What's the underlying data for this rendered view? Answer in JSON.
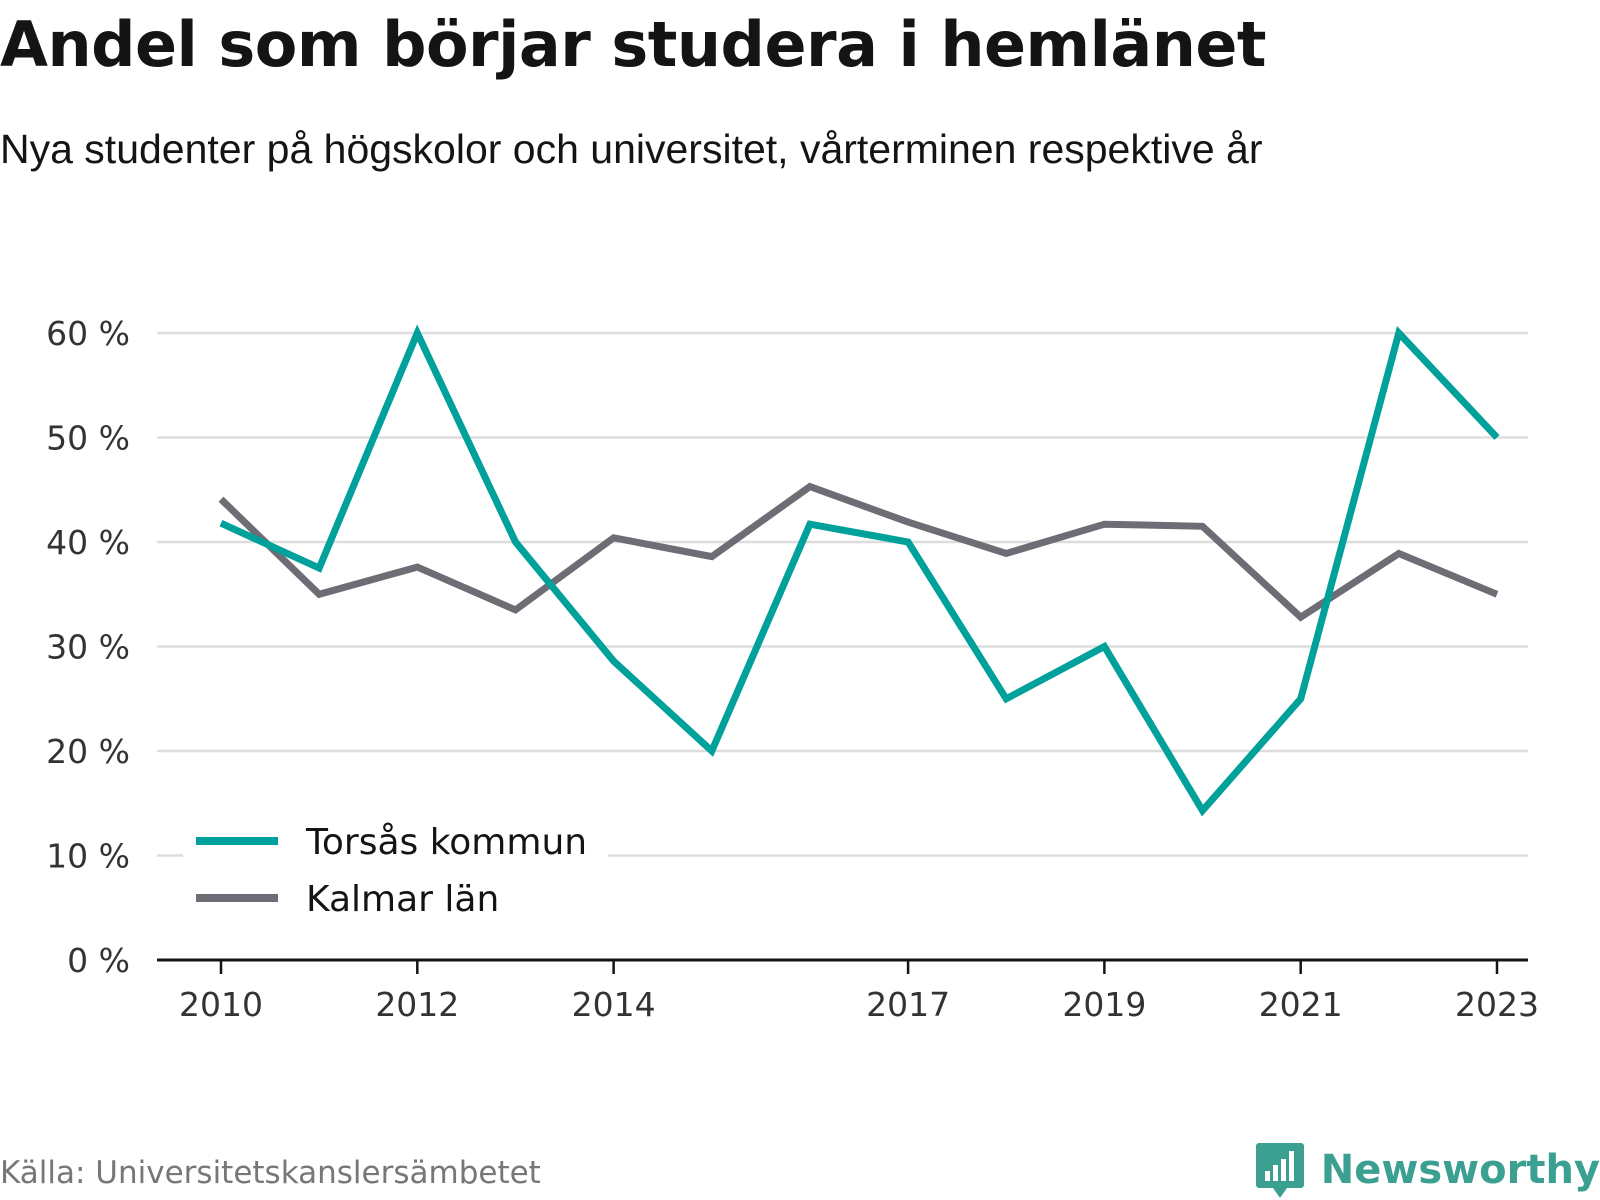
{
  "header": {
    "title": "Andel som börjar studera i hemlänet",
    "subtitle": "Nya studenter på högskolor och universitet, vårterminen respektive år"
  },
  "footer": {
    "source": "Källa: Universitetskanslersämbetet",
    "brand": "Newsworthy"
  },
  "colors": {
    "torsas": "#00A19A",
    "kalmar": "#6E6C75",
    "grid": "#DDDDDD",
    "axis": "#141414",
    "brand": "#3B9F92"
  },
  "chart_data": {
    "type": "line",
    "title": "Andel som börjar studera i hemlänet",
    "subtitle": "Nya studenter på högskolor och universitet, vårterminen respektive år",
    "x": [
      2010,
      2011,
      2012,
      2013,
      2014,
      2015,
      2016,
      2017,
      2018,
      2019,
      2020,
      2021,
      2022,
      2023
    ],
    "x_tick_labels": [
      "2010",
      "2012",
      "2014",
      "2017",
      "2019",
      "2021",
      "2023"
    ],
    "y_tick_values": [
      0,
      10,
      20,
      30,
      40,
      50,
      60
    ],
    "y_tick_labels": [
      "0 %",
      "10 %",
      "20 %",
      "30 %",
      "40 %",
      "50 %",
      "60 %"
    ],
    "ylim": [
      0,
      60
    ],
    "grid": true,
    "legend_position": "bottom-left",
    "series": [
      {
        "name": "Torsås kommun",
        "values": [
          41.8,
          37.5,
          60,
          40,
          28.6,
          20,
          41.7,
          40,
          25,
          30,
          14.3,
          25,
          60,
          50
        ]
      },
      {
        "name": "Kalmar län",
        "values": [
          44.1,
          35.0,
          37.6,
          33.5,
          40.4,
          38.6,
          45.3,
          41.9,
          38.9,
          41.7,
          41.5,
          32.8,
          38.9,
          35.0
        ]
      }
    ]
  }
}
